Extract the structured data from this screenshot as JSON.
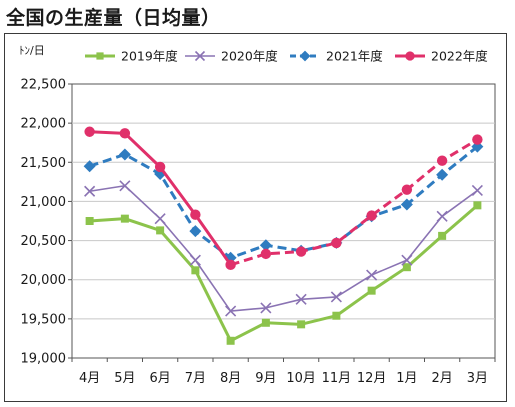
{
  "title": "全国の生産量（日均量）",
  "chart_data": {
    "type": "line",
    "title": "全国の生産量（日均量）",
    "ylabel": "ﾄﾝ/日",
    "xlabel": "",
    "categories": [
      "4月",
      "5月",
      "6月",
      "7月",
      "8月",
      "9月",
      "10月",
      "11月",
      "12月",
      "1月",
      "2月",
      "3月"
    ],
    "ylim": [
      19000,
      22500
    ],
    "yticks": [
      19000,
      19500,
      20000,
      20500,
      21000,
      21500,
      22000,
      22500
    ],
    "ytick_labels": [
      "19,000",
      "19,500",
      "20,000",
      "20,500",
      "21,000",
      "21,500",
      "22,000",
      "22,500"
    ],
    "grid": true,
    "legend_position": "top",
    "series": [
      {
        "name": "2019年度",
        "color": "#8cc34b",
        "marker": "square",
        "dashed": false,
        "values": [
          20750,
          20780,
          20630,
          20120,
          19220,
          19450,
          19430,
          19540,
          19860,
          20160,
          20560,
          20950
        ]
      },
      {
        "name": "2020年度",
        "color": "#8a73b3",
        "marker": "x",
        "dashed": false,
        "values": [
          21130,
          21200,
          20780,
          20250,
          19600,
          19640,
          19750,
          19780,
          20060,
          20250,
          20810,
          21140
        ]
      },
      {
        "name": "2021年度",
        "color": "#2f7cc0",
        "marker": "diamond",
        "dashed": true,
        "dashed_from_index": 0,
        "values": [
          21450,
          21600,
          21350,
          20620,
          20280,
          20440,
          20370,
          20470,
          20810,
          20960,
          21340,
          21700
        ]
      },
      {
        "name": "2022年度",
        "color": "#e0306a",
        "marker": "circle",
        "dashed": true,
        "dashed_from_index": 4,
        "values": [
          21890,
          21870,
          21440,
          20830,
          20190,
          20330,
          20360,
          20470,
          20820,
          21150,
          21520,
          21790
        ]
      }
    ]
  }
}
